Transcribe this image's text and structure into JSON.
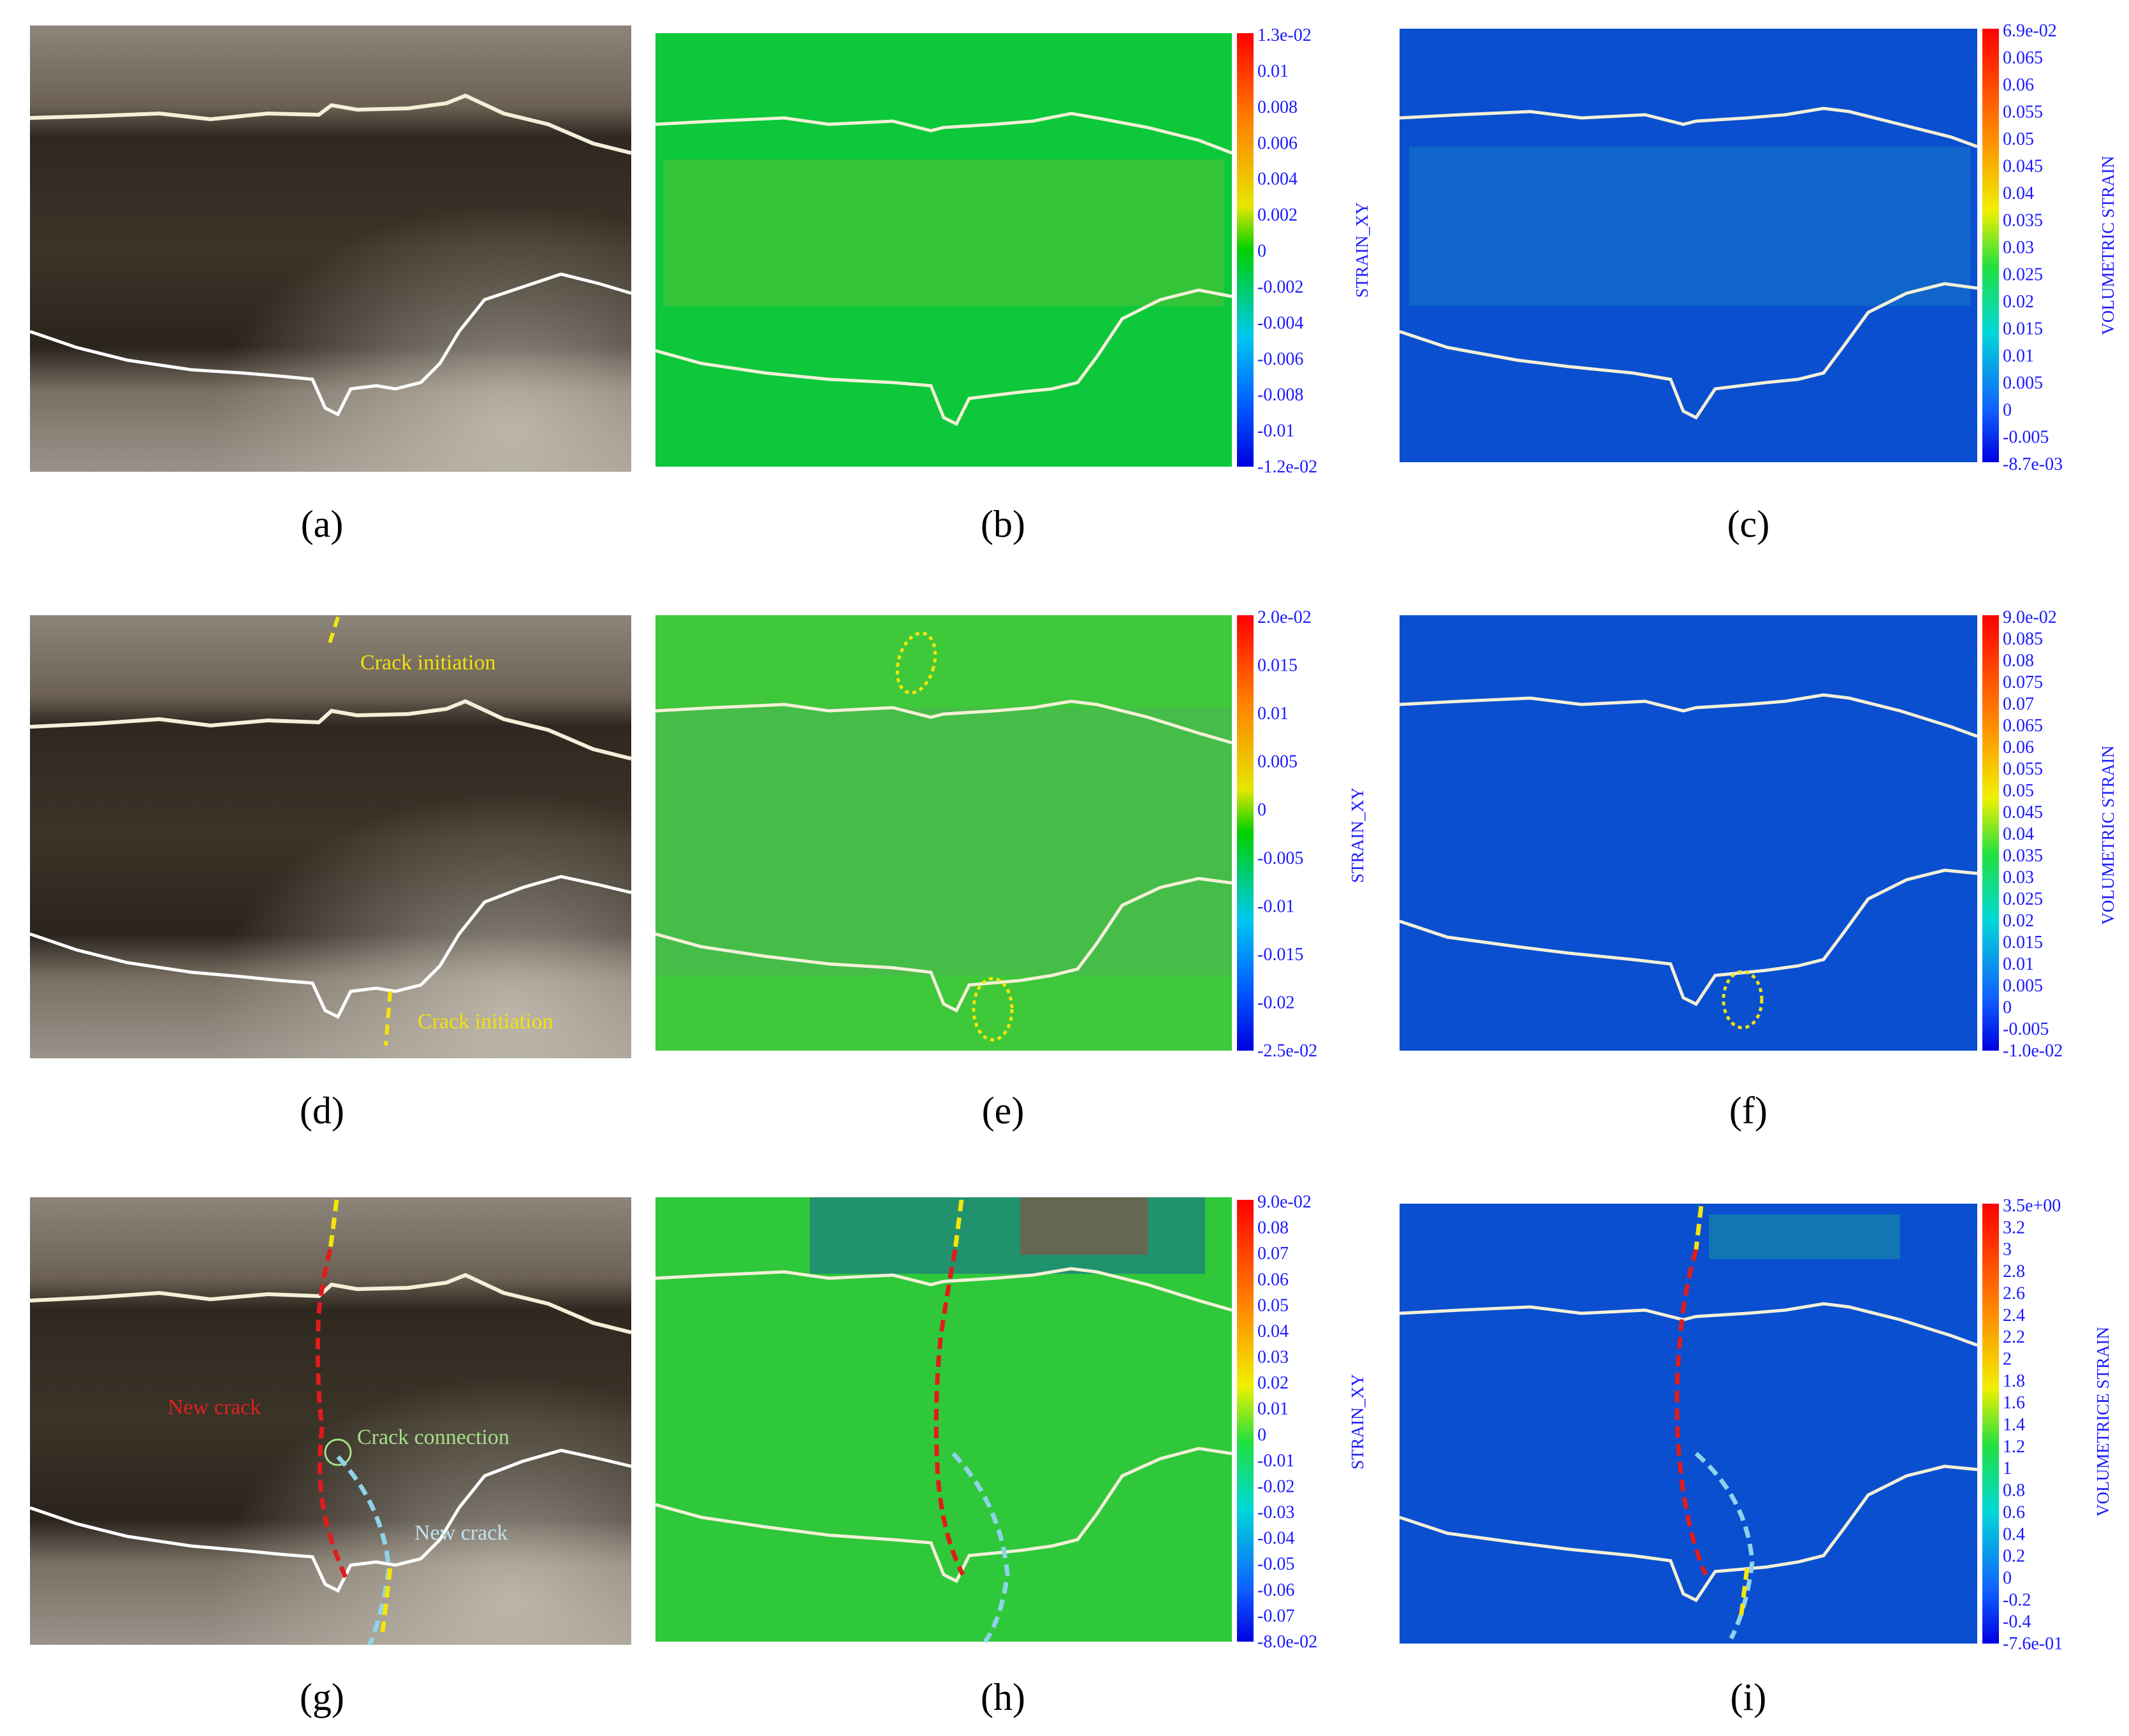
{
  "captions": [
    "(a)",
    "(b)",
    "(c)",
    "(d)",
    "(e)",
    "(f)",
    "(g)",
    "(h)",
    "(i)"
  ],
  "colorbars": {
    "b": {
      "title": "STRAIN_XY",
      "labels": [
        "1.3e-02",
        "0.01",
        "0.008",
        "0.006",
        "0.004",
        "0.002",
        "0",
        "-0.002",
        "-0.004",
        "-0.006",
        "-0.008",
        "-0.01",
        "-1.2e-02"
      ]
    },
    "c": {
      "title": "VOLUMETRIC STRAIN",
      "labels": [
        "6.9e-02",
        "0.065",
        "0.06",
        "0.055",
        "0.05",
        "0.045",
        "0.04",
        "0.035",
        "0.03",
        "0.025",
        "0.02",
        "0.015",
        "0.01",
        "0.005",
        "0",
        "-0.005",
        "-8.7e-03"
      ]
    },
    "e": {
      "title": "STRAIN_XY",
      "labels": [
        "2.0e-02",
        "0.015",
        "0.01",
        "0.005",
        "0",
        "-0.005",
        "-0.01",
        "-0.015",
        "-0.02",
        "-2.5e-02"
      ]
    },
    "f": {
      "title": "VOLUMETRIC STRAIN",
      "labels": [
        "9.0e-02",
        "0.085",
        "0.08",
        "0.075",
        "0.07",
        "0.065",
        "0.06",
        "0.055",
        "0.05",
        "0.045",
        "0.04",
        "0.035",
        "0.03",
        "0.025",
        "0.02",
        "0.015",
        "0.01",
        "0.005",
        "0",
        "-0.005",
        "-1.0e-02"
      ]
    },
    "h": {
      "title": "STRAIN_XY",
      "labels": [
        "9.0e-02",
        "0.08",
        "0.07",
        "0.06",
        "0.05",
        "0.04",
        "0.03",
        "0.02",
        "0.01",
        "0",
        "-0.01",
        "-0.02",
        "-0.03",
        "-0.04",
        "-0.05",
        "-0.06",
        "-0.07",
        "-8.0e-02"
      ]
    },
    "i": {
      "title": "VOLUMETRICE STRAIN",
      "labels": [
        "3.5e+00",
        "3.2",
        "3",
        "2.8",
        "2.6",
        "2.4",
        "2.2",
        "2",
        "1.8",
        "1.6",
        "1.4",
        "1.2",
        "1",
        "0.8",
        "0.6",
        "0.4",
        "0.2",
        "0",
        "-0.2",
        "-0.4",
        "-7.6e-01"
      ]
    }
  },
  "annotations": {
    "crack_initiation_top": "Crack initiation",
    "crack_initiation_bottom": "Crack initiation",
    "new_crack_red": "New crack",
    "crack_connection": "Crack connection",
    "new_crack_blue": "New crack"
  },
  "colors": {
    "field_green": "#0cc83a",
    "field_blue": "#0a4fcf",
    "boundary": "#f4f0d8",
    "crack_yellow": "#f5e50a",
    "crack_red": "#e21b1b",
    "crack_blue": "#8fd3ea",
    "label_yellow": "#f2e20a",
    "label_red": "#e02020",
    "label_green": "#a6e08a",
    "label_blue": "#bfe4f2"
  }
}
